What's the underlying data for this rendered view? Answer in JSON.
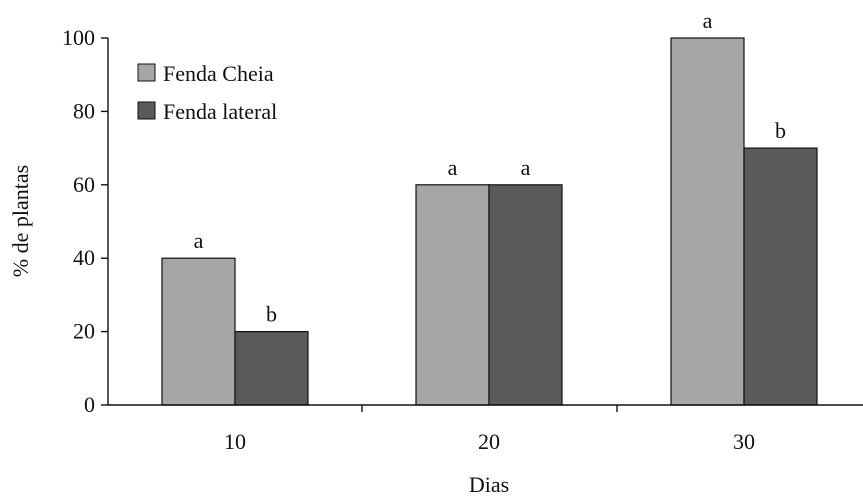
{
  "chart_data": {
    "type": "bar",
    "categories": [
      "10",
      "20",
      "30"
    ],
    "series": [
      {
        "name": "Fenda Cheia",
        "color": "#a6a6a6",
        "values": [
          40,
          60,
          100
        ],
        "labels": [
          "a",
          "a",
          "a"
        ]
      },
      {
        "name": "Fenda lateral",
        "color": "#5a5a5a",
        "values": [
          20,
          60,
          70
        ],
        "labels": [
          "b",
          "a",
          "b"
        ]
      }
    ],
    "xlabel": "Dias",
    "ylabel": "% de plantas",
    "ylim": [
      0,
      100
    ],
    "yticks": [
      0,
      20,
      40,
      60,
      80,
      100
    ],
    "grid": false,
    "legend_position": "top-left"
  }
}
